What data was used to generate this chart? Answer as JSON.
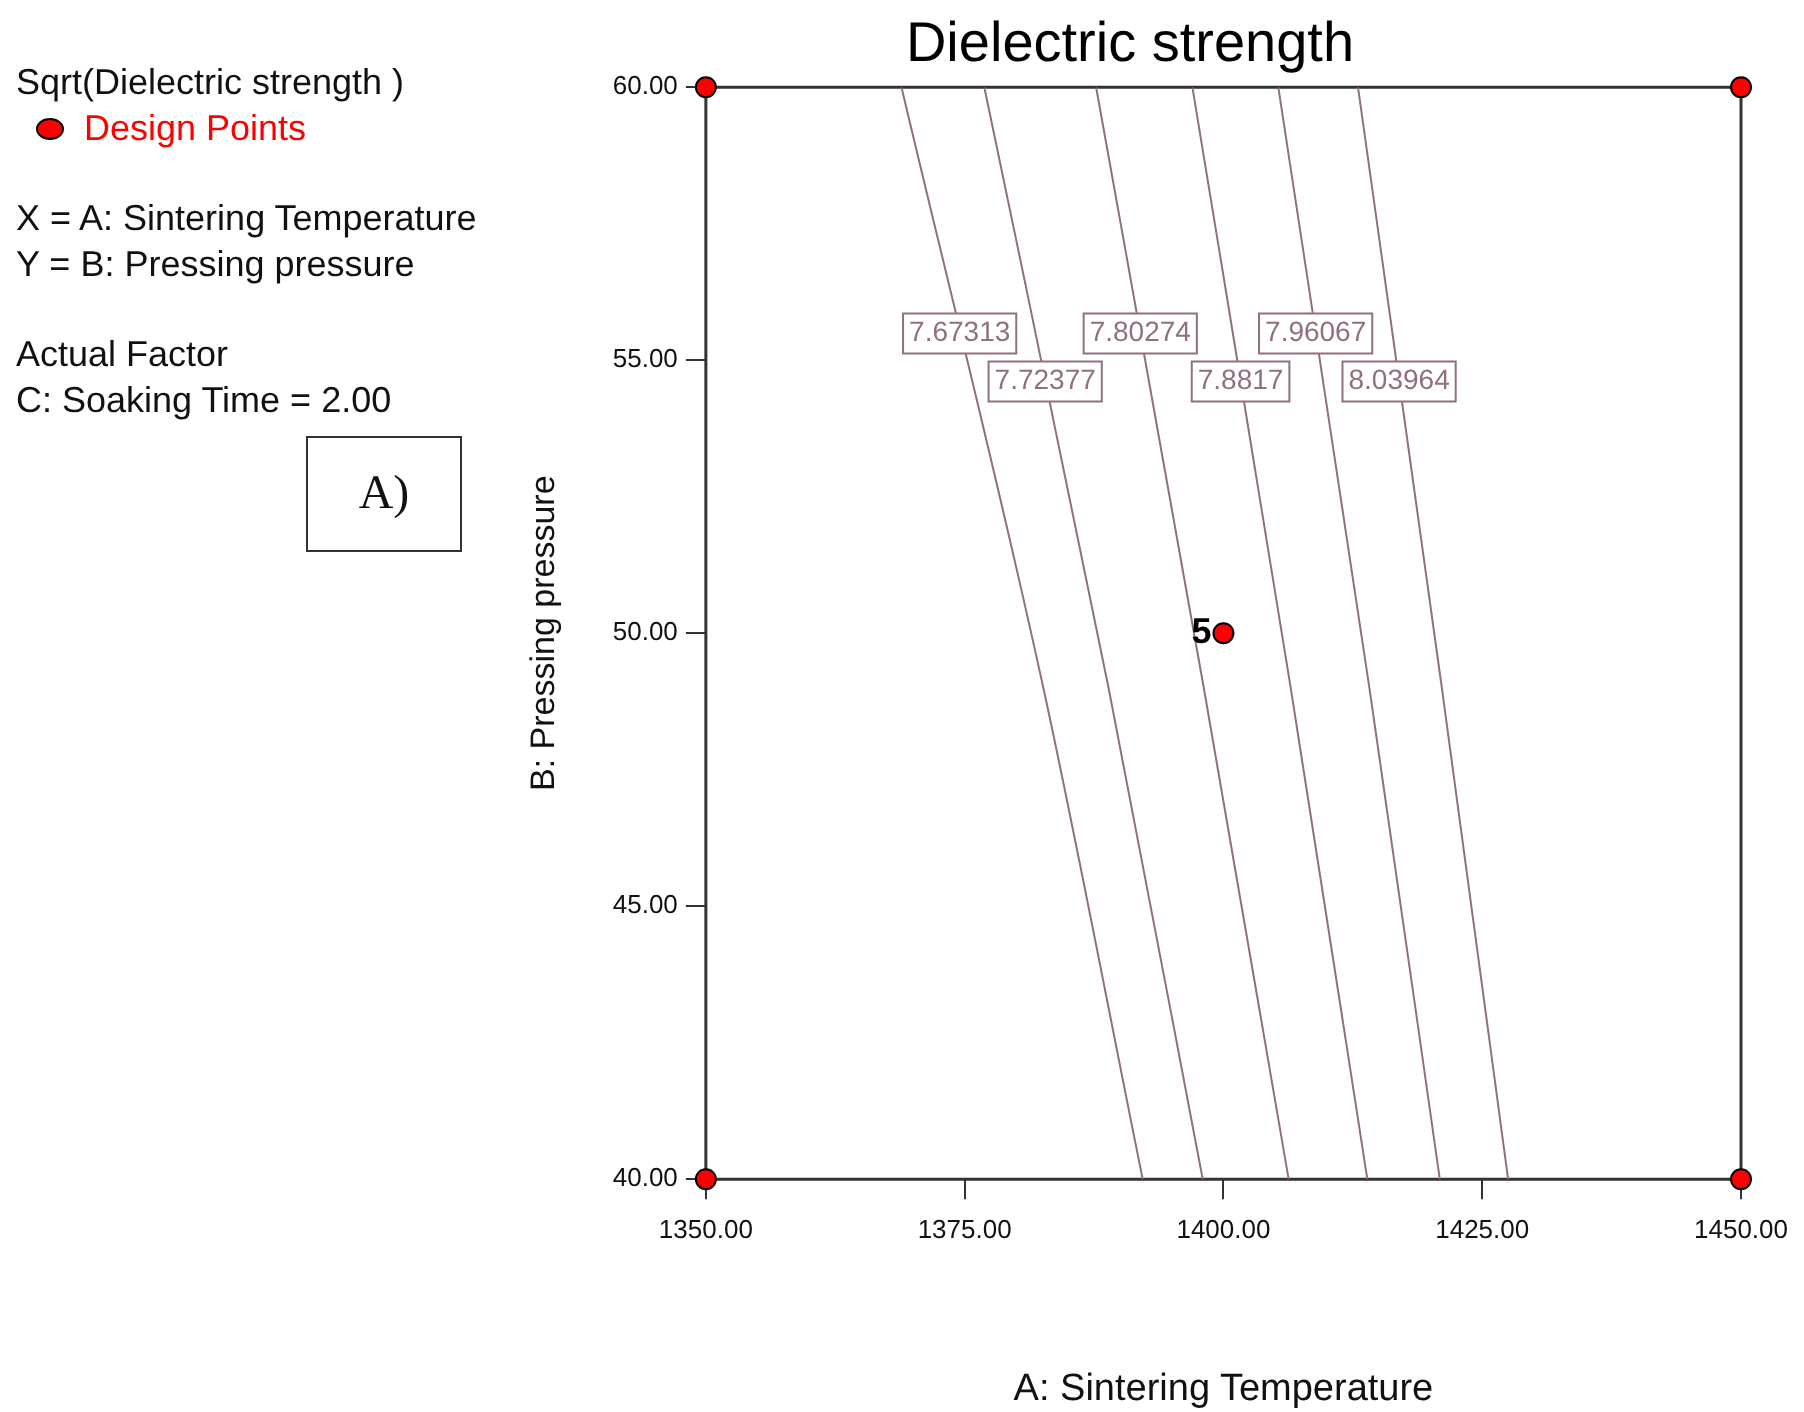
{
  "chart_data": {
    "type": "line",
    "title": "Dielectric strength",
    "xlabel": "A: Sintering Temperature",
    "ylabel": "B: Pressing pressure",
    "legend_title": "Sqrt(Dielectric strength )",
    "legend": "top left",
    "grid": false,
    "marker": "none",
    "line_style": "solid",
    "xlim": [
      1350,
      1450
    ],
    "ylim": [
      40,
      60
    ],
    "xticks": [
      {
        "value": 1350,
        "label": "1350.00"
      },
      {
        "value": 1375,
        "label": "1375.00"
      },
      {
        "value": 1400,
        "label": "1400.00"
      },
      {
        "value": 1425,
        "label": "1425.00"
      },
      {
        "value": 1450,
        "label": "1450.00"
      }
    ],
    "yticks": [
      {
        "value": 40,
        "label": "40.00"
      },
      {
        "value": 45,
        "label": "45.00"
      },
      {
        "value": 50,
        "label": "50.00"
      },
      {
        "value": 55,
        "label": "55.00"
      },
      {
        "value": 60,
        "label": "60.00"
      }
    ],
    "series": [
      {
        "name": "7.67313",
        "color": "#8f6f80",
        "x": [
          1368.9,
          1382.6,
          1392.2
        ],
        "values": [
          60,
          49,
          40
        ]
      },
      {
        "name": "7.72377",
        "color": "#8f6f80",
        "x": [
          1376.9,
          1388.9,
          1398.0
        ],
        "values": [
          60,
          49,
          40
        ]
      },
      {
        "name": "7.80274",
        "color": "#8f6f80",
        "x": [
          1387.7,
          1398.1,
          1406.3
        ],
        "values": [
          60,
          49,
          40
        ]
      },
      {
        "name": "7.8817",
        "color": "#8f6f80",
        "x": [
          1397.0,
          1406.5,
          1413.9
        ],
        "values": [
          60,
          49,
          40
        ]
      },
      {
        "name": "7.96067",
        "color": "#8f6f80",
        "x": [
          1405.3,
          1414.1,
          1420.9
        ],
        "values": [
          60,
          49,
          40
        ]
      },
      {
        "name": "8.03964",
        "color": "#8f6f80",
        "x": [
          1413.0,
          1421.1,
          1427.5
        ],
        "values": [
          60,
          49,
          40
        ]
      },
      {
        "name": "Design Points",
        "type": "scatter",
        "marker": "circle",
        "color": "#ff0000",
        "x": [
          1350,
          1350,
          1450,
          1450,
          1400
        ],
        "values": [
          40,
          60,
          40,
          60,
          50
        ]
      }
    ],
    "annotations": [
      "X = A: Sintering Temperature",
      "Y = B: Pressing pressure",
      "Actual Factor",
      "C: Soaking Time = 2.00",
      "A)",
      {
        "text": "5",
        "x": 1400,
        "y": 50
      }
    ]
  }
}
